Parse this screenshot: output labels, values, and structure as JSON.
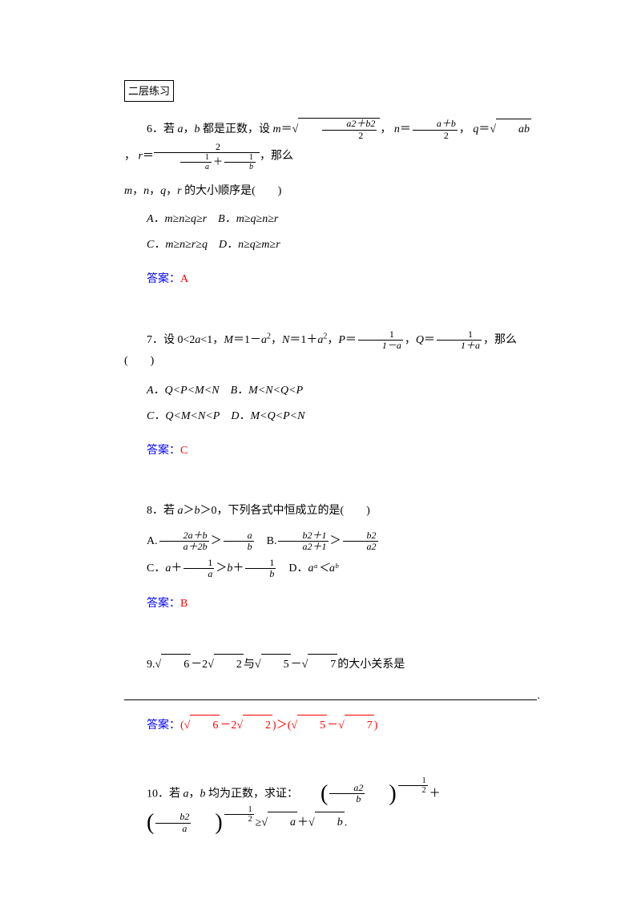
{
  "section_title": "二层练习",
  "colors": {
    "answer_label": "#0000ff",
    "answer_value": "#ff0000",
    "text": "#000000",
    "background": "#ffffff"
  },
  "q6": {
    "number": "6．",
    "text_part1": "若 ",
    "var_a": "a",
    "text_part2": "，",
    "var_b": "b",
    "text_part3": " 都是正数，设 ",
    "var_m": "m",
    "eq": "＝",
    "text_part4": "，",
    "var_n": "n",
    "text_part5": "，",
    "var_q": "q",
    "sqrt_ab": "ab",
    "text_part6": "，",
    "var_r": "r",
    "text_part7": "，那么",
    "line2_part1": "m",
    "line2_part2": "，",
    "line2_part3": "n",
    "line2_part4": "，",
    "line2_part5": "q",
    "line2_part6": "，",
    "line2_part7": "r",
    "line2_part8": " 的大小顺序是(　　)",
    "optA": "A．m≥n≥q≥r",
    "optB": "B．m≥q≥n≥r",
    "optC": "C．m≥n≥r≥q",
    "optD": "D．n≥q≥m≥r",
    "answer_label": "答案：",
    "answer": "A",
    "frac_sqrt_num": "a2＋b2",
    "frac_sqrt_den": "2",
    "frac_n_num": "a＋b",
    "frac_n_den": "2",
    "frac_r_num": "2",
    "frac_r_den_left": "1",
    "frac_r_den_a": "a",
    "frac_r_den_plus": "＋",
    "frac_r_den_right": "1",
    "frac_r_den_b": "b"
  },
  "q7": {
    "number": "7．",
    "text_part1": "设 0<2",
    "var_a": "a",
    "text_part2": "<1，",
    "var_M": "M",
    "text_part3": "＝1－",
    "a2": "a",
    "exp2": "2",
    "text_part4": "，",
    "var_N": "N",
    "text_part5": "＝1＋",
    "text_part6": "，",
    "var_P": "P",
    "text_part7": "＝",
    "text_part8": "，",
    "var_Q": "Q",
    "text_part9": "＝",
    "text_part10": "，那么(　　)",
    "frac_p_num": "1",
    "frac_p_den": "1－a",
    "frac_q_num": "1",
    "frac_q_den": "1＋a",
    "optA": "A．Q<P<M<N",
    "optB": "B．M<N<Q<P",
    "optC": "C．Q<M<N<P",
    "optD": "D．M<Q<P<N",
    "answer_label": "答案：",
    "answer": "C"
  },
  "q8": {
    "number": "8．",
    "text_part1": "若 ",
    "var_a": "a",
    "text_part2": "＞",
    "var_b": "b",
    "text_part3": "＞0，下列各式中恒成立的是(　　)",
    "optA_label": "A.",
    "optA_frac1_num": "2a＋b",
    "optA_frac1_den": "a＋2b",
    "optA_gt": "＞",
    "optA_frac2_num": "a",
    "optA_frac2_den": "b",
    "optB_label": "B.",
    "optB_frac1_num": "b2＋1",
    "optB_frac1_den": "a2＋1",
    "optB_gt": "＞",
    "optB_frac2_num": "b2",
    "optB_frac2_den": "a2",
    "optC_label": "C．",
    "optC_a": "a",
    "optC_plus": "＋",
    "optC_frac1_num": "1",
    "optC_frac1_den": "a",
    "optC_gt": "＞",
    "optC_b": "b",
    "optC_frac2_num": "1",
    "optC_frac2_den": "b",
    "optD_label": "D．",
    "optD_text": "aᵃ＜aᵇ",
    "answer_label": "答案：",
    "answer": "B"
  },
  "q9": {
    "number": "9.",
    "sqrt6": "6",
    "minus": "－2",
    "sqrt2": "2",
    "text1": "与",
    "sqrt5": "5",
    "minus2": "－",
    "sqrt7": "7",
    "text2": "的大小关系是",
    "answer_label": "答案：",
    "answer_p1": "(",
    "answer_sqrt6": "6",
    "answer_minus1": "－2",
    "answer_sqrt2": "2",
    "answer_p2": ")＞(",
    "answer_sqrt5": "5",
    "answer_minus2": "－",
    "answer_sqrt7": "7",
    "answer_p3": ")"
  },
  "q10": {
    "number": "10．",
    "text_part1": "若 ",
    "var_a": "a",
    "text_part2": "，",
    "var_b": "b",
    "text_part3": " 均为正数，求证：",
    "frac1_inner_num": "a2",
    "frac1_inner_den": "b",
    "exp_num": "1",
    "exp_den": "2",
    "plus": "＋",
    "frac2_inner_num": "b2",
    "frac2_inner_den": "a",
    "geq": "≥",
    "sqrt_a": "a",
    "plus2": "＋",
    "sqrt_b": "b",
    "period": "."
  }
}
